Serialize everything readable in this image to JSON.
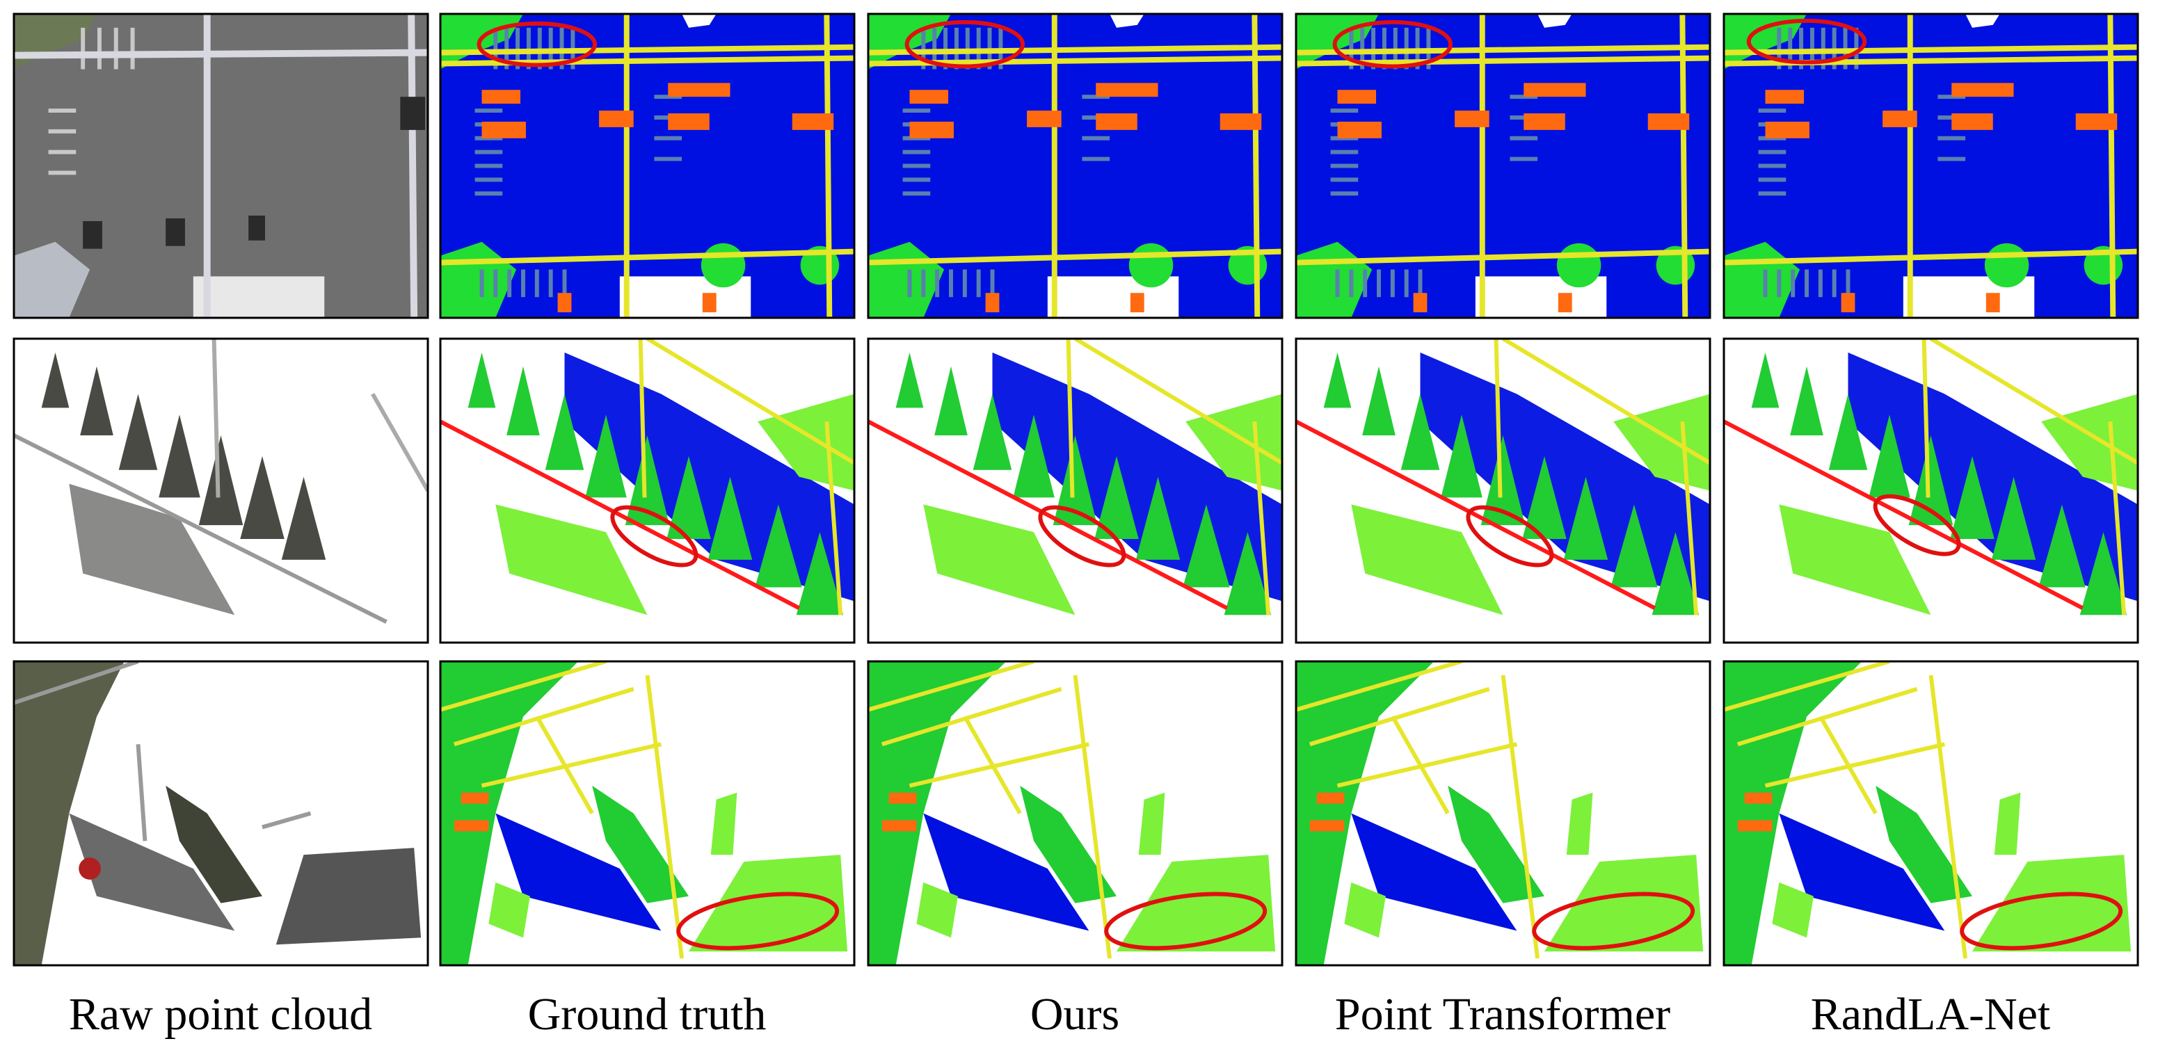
{
  "columns": [
    "Raw point cloud",
    "Ground truth",
    "Ours",
    "Point Transformer",
    "RandLA-Net"
  ]
}
